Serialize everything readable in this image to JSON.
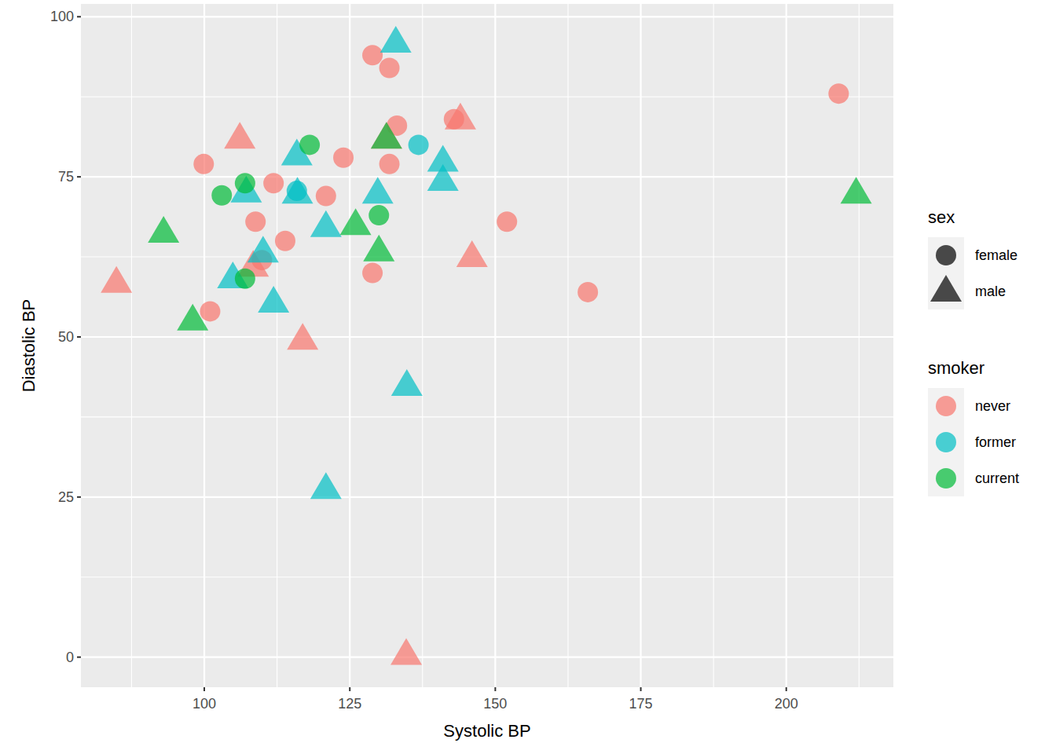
{
  "chart_data": {
    "type": "scatter",
    "x_label": "Systolic BP",
    "y_label": "Diastolic BP",
    "xlim": [
      78.8,
      218.4
    ],
    "ylim": [
      -4.7,
      102
    ],
    "xticks": [
      100,
      125,
      150,
      175,
      200
    ],
    "yticks": [
      0,
      25,
      50,
      75,
      100
    ],
    "grid": true,
    "shape_legend": {
      "title": "sex",
      "levels": [
        "female",
        "male"
      ],
      "markers": [
        "circle",
        "triangle"
      ]
    },
    "color_legend": {
      "title": "smoker"
    },
    "series": [
      {
        "name": "never",
        "color": "#F8766D",
        "x": [
          128.9,
          131.8,
          209.0,
          133.1,
          142.9,
          99.9,
          123.9,
          131.8,
          111.9,
          120.9,
          108.8,
          152.0,
          113.9,
          109.9,
          128.9,
          101.0,
          165.9,
          106.1,
          144.0,
          131.3,
          108.4,
          84.9,
          146.0,
          116.9,
          134.7
        ],
        "values": [
          94,
          92,
          88,
          83,
          84,
          77,
          78,
          77,
          74,
          72,
          68,
          68,
          65,
          62,
          60,
          54,
          57,
          81,
          84,
          81,
          61,
          58.5,
          62.5,
          49.6,
          0.4
        ],
        "sex": [
          "female",
          "female",
          "female",
          "female",
          "female",
          "female",
          "female",
          "female",
          "female",
          "female",
          "female",
          "female",
          "female",
          "female",
          "female",
          "female",
          "female",
          "male",
          "male",
          "male",
          "male",
          "male",
          "male",
          "male",
          "male"
        ]
      },
      {
        "name": "former",
        "color": "#00BFC4",
        "x": [
          136.8,
          115.9,
          132.9,
          115.9,
          107.2,
          116.0,
          141.0,
          141.0,
          129.8,
          120.9,
          110.1,
          104.9,
          111.9,
          134.8,
          120.9
        ],
        "values": [
          80,
          72.8,
          96,
          78.4,
          72.6,
          72.4,
          77.4,
          74.4,
          72.4,
          67.2,
          63.2,
          59.2,
          55.4,
          42.4,
          26.3
        ],
        "sex": [
          "female",
          "female",
          "male",
          "male",
          "male",
          "male",
          "male",
          "male",
          "male",
          "male",
          "male",
          "male",
          "male",
          "male",
          "male"
        ]
      },
      {
        "name": "current",
        "color": "#00BA38",
        "x": [
          118.1,
          107.0,
          103.0,
          130.0,
          107.0,
          212.0,
          93.0,
          126.0,
          130.0,
          98.0,
          131.3
        ],
        "values": [
          80,
          74,
          72.1,
          69,
          59.1,
          72.4,
          66.3,
          67.5,
          63.4,
          52.6,
          81
        ],
        "sex": [
          "female",
          "female",
          "female",
          "female",
          "female",
          "male",
          "male",
          "male",
          "male",
          "male",
          "male"
        ]
      }
    ]
  }
}
